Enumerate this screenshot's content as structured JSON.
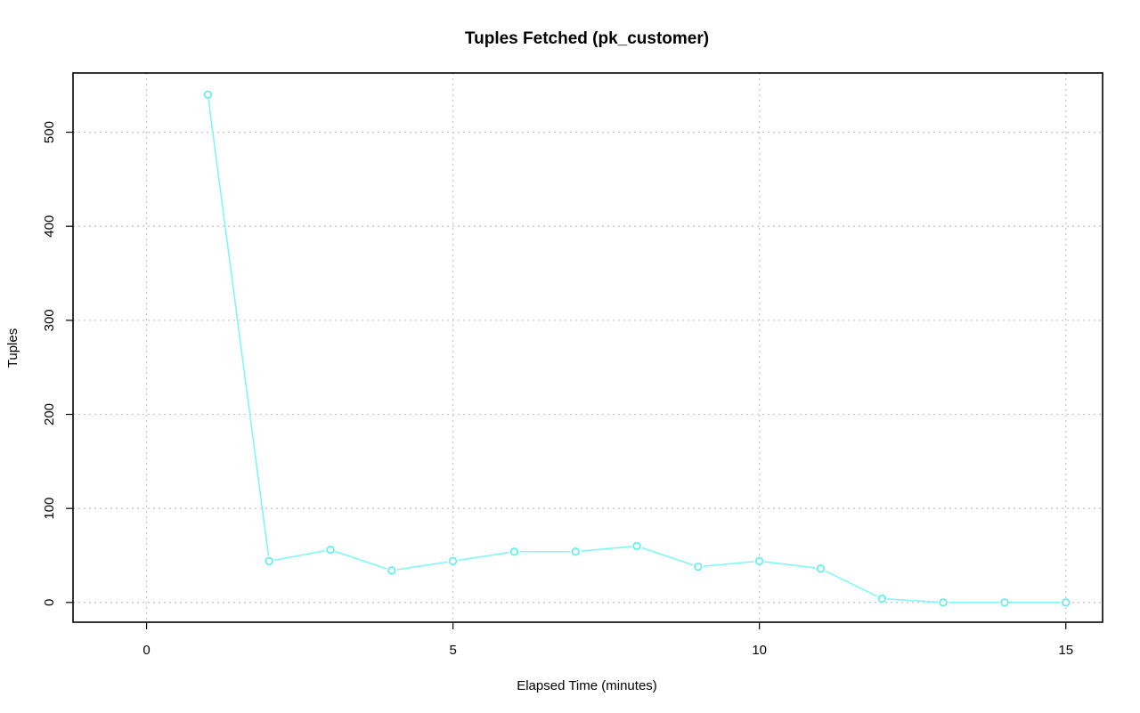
{
  "chart_data": {
    "type": "line",
    "title": "Tuples Fetched (pk_customer)",
    "xlabel": "Elapsed Time (minutes)",
    "ylabel": "Tuples",
    "xlim": [
      -1.2,
      15.6
    ],
    "ylim": [
      -21,
      563
    ],
    "xticks": [
      0,
      5,
      10,
      15
    ],
    "yticks": [
      0,
      100,
      200,
      300,
      400,
      500
    ],
    "grid": true,
    "color": "#7ff7f7",
    "series": [
      {
        "x": [
          1,
          2,
          3,
          4,
          5,
          6,
          7,
          8,
          9,
          10,
          11,
          12,
          13,
          14,
          15
        ],
        "values": [
          540,
          44,
          56,
          34,
          44,
          54,
          54,
          60,
          38,
          44,
          36,
          4,
          0,
          0,
          0
        ]
      }
    ]
  }
}
